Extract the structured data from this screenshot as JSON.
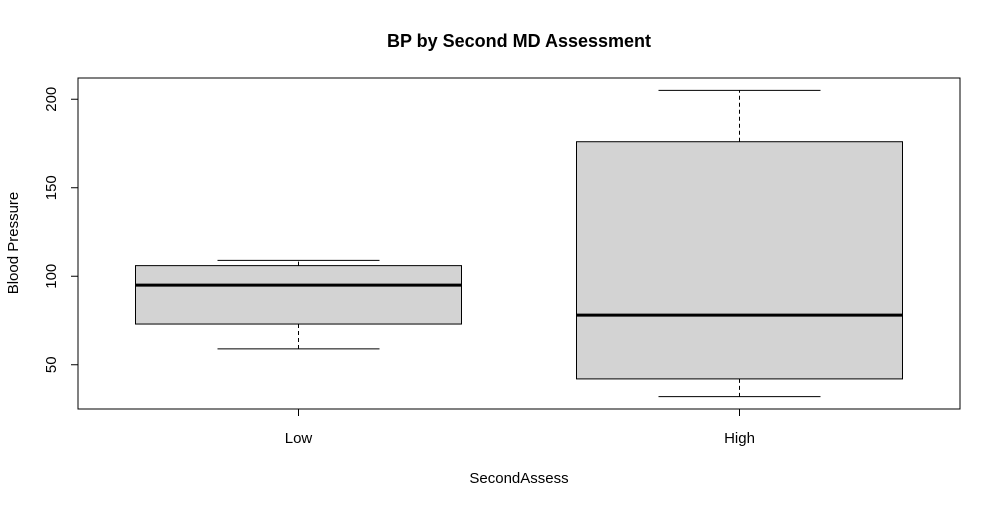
{
  "chart_data": {
    "type": "box",
    "title": "BP by Second MD Assessment",
    "xlabel": "SecondAssess",
    "ylabel": "Blood Pressure",
    "ylim": [
      25,
      212
    ],
    "yticks": [
      50,
      100,
      150,
      200
    ],
    "grid": false,
    "categories": [
      "Low",
      "High"
    ],
    "boxes": [
      {
        "category": "Low",
        "whisker_low": 59,
        "q1": 73,
        "median": 95,
        "q3": 106,
        "whisker_high": 109
      },
      {
        "category": "High",
        "whisker_low": 32,
        "q1": 42,
        "median": 78,
        "q3": 176,
        "whisker_high": 205
      }
    ],
    "colors": {
      "box_fill": "#d3d3d3",
      "stroke": "#000000"
    }
  }
}
